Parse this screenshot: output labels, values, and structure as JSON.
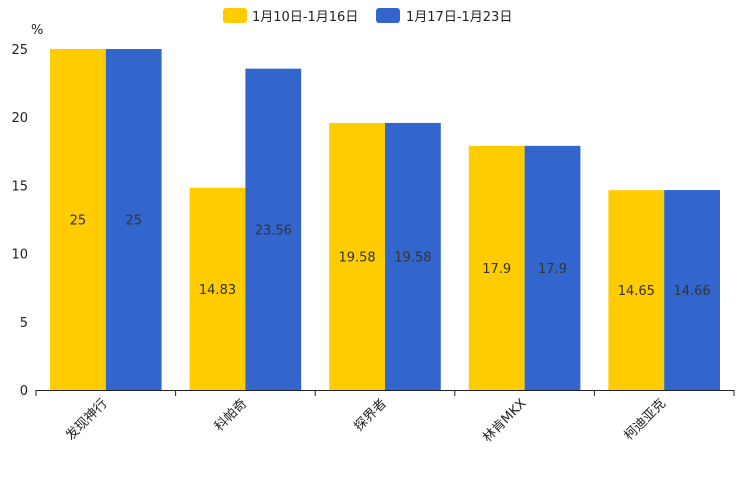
{
  "chart_data": {
    "type": "bar",
    "title": "",
    "xlabel": "",
    "ylabel": "%",
    "ylim": [
      0,
      25
    ],
    "yticks": [
      0,
      5,
      10,
      15,
      20,
      25
    ],
    "grid": false,
    "legend_position": "top-center",
    "categories": [
      "发现神行",
      "科帕奇",
      "探界者",
      "林肯MKX",
      "柯迪亚克"
    ],
    "series": [
      {
        "name": "1月10日-1月16日",
        "color": "#ffcc00",
        "values": [
          25,
          14.83,
          19.58,
          17.9,
          14.65
        ],
        "labels": [
          "25",
          "14.83",
          "19.58",
          "17.9",
          "14.65"
        ]
      },
      {
        "name": "1月17日-1月23日",
        "color": "#3366cc",
        "values": [
          25,
          23.56,
          19.58,
          17.9,
          14.66
        ],
        "labels": [
          "25",
          "23.56",
          "19.58",
          "17.9",
          "14.66"
        ]
      }
    ]
  }
}
